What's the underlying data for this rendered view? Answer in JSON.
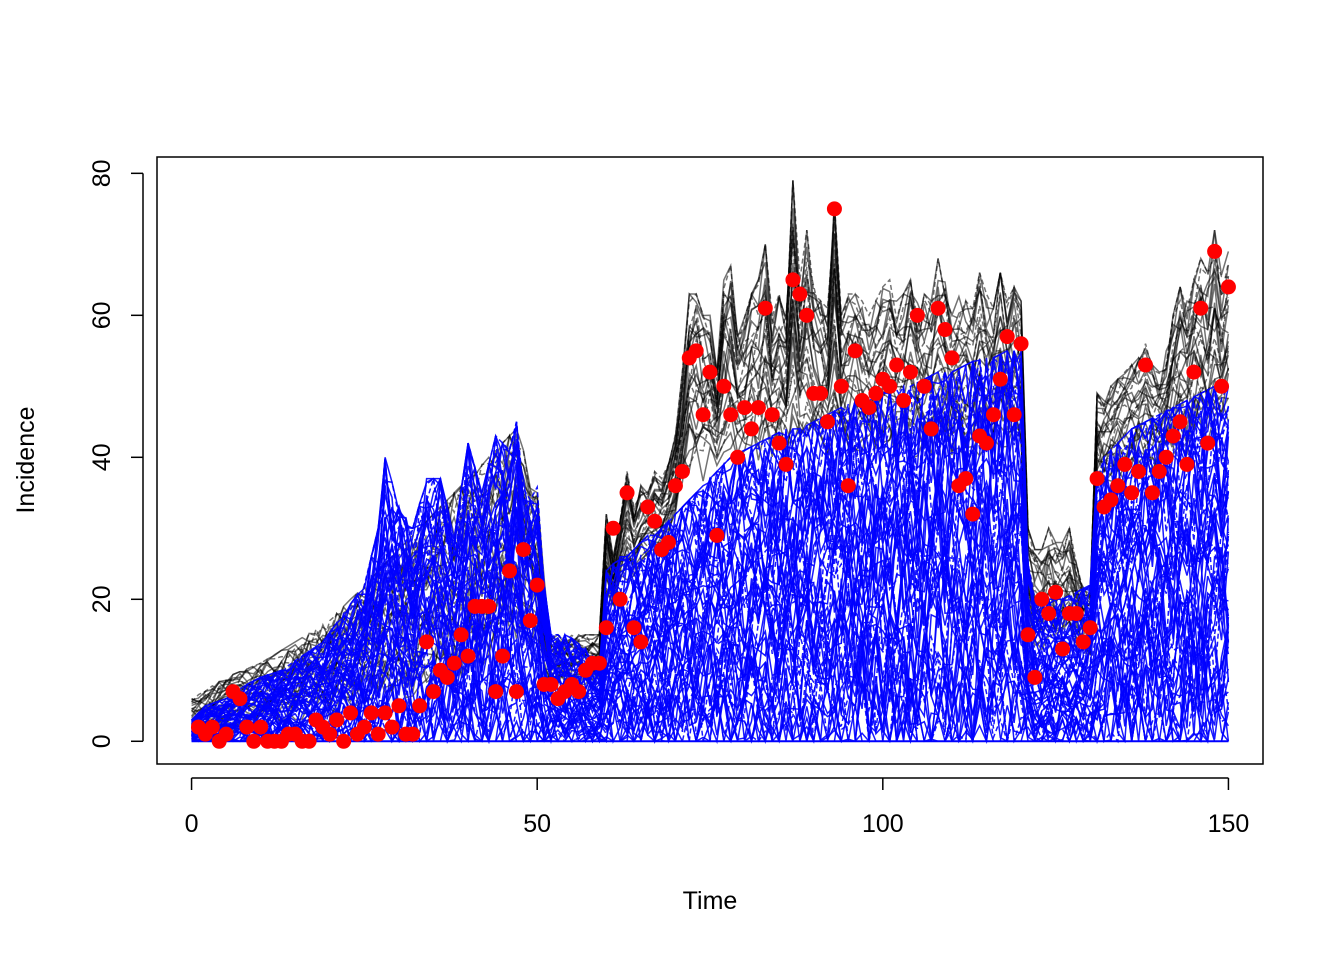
{
  "chart_data": {
    "type": "line",
    "title": "",
    "xlabel": "Time",
    "ylabel": "Incidence",
    "xlim": [
      -5,
      155
    ],
    "ylim": [
      -3.2,
      82.3
    ],
    "xticks": [
      0,
      50,
      100,
      150
    ],
    "yticks": [
      0,
      20,
      40,
      60,
      80
    ],
    "grid": false,
    "legend": "none",
    "colors": {
      "simulations_upper": "#000000",
      "simulations_lower": "#0000FF",
      "observed": "#FF0000"
    },
    "series": [
      {
        "style": "black simulation trajectories",
        "x": [
          0,
          5,
          10,
          20,
          30,
          40,
          47,
          50,
          51,
          52,
          55,
          59,
          60,
          61,
          62,
          63,
          64,
          65,
          66,
          67,
          68,
          69,
          70,
          71,
          72,
          73,
          74,
          75,
          76,
          77,
          78,
          79,
          80,
          81,
          82,
          83,
          84,
          85,
          86,
          87,
          88,
          89,
          90,
          91,
          92,
          93,
          94,
          95,
          96,
          97,
          98,
          99,
          100,
          101,
          102,
          103,
          104,
          105,
          106,
          107,
          108,
          109,
          110,
          111,
          112,
          113,
          114,
          115,
          116,
          117,
          118,
          119,
          120,
          121,
          122,
          123,
          124,
          125,
          126,
          127,
          128,
          129,
          130,
          131,
          132,
          133,
          134,
          135,
          136,
          137,
          138,
          139,
          140,
          141,
          142,
          143,
          144,
          145,
          146,
          147,
          148,
          149,
          150
        ],
        "y_upper": [
          6,
          9,
          11,
          17,
          27,
          37,
          44,
          35,
          23,
          15,
          15,
          15,
          32,
          26,
          31,
          38,
          33,
          36,
          36,
          38,
          37,
          39,
          44,
          52,
          63,
          63,
          60,
          60,
          52,
          66,
          67,
          58,
          60,
          63,
          65,
          70,
          60,
          63,
          60,
          79,
          65,
          72,
          65,
          62,
          62,
          76,
          60,
          63,
          63,
          62,
          60,
          62,
          64,
          65,
          62,
          63,
          65,
          62,
          63,
          62,
          68,
          65,
          60,
          63,
          62,
          62,
          66,
          63,
          61,
          66,
          62,
          64,
          62,
          30,
          27,
          27,
          30,
          28,
          28,
          30,
          25,
          22,
          21,
          49,
          48,
          50,
          51,
          52,
          53,
          54,
          56,
          53,
          52,
          55,
          60,
          64,
          62,
          65,
          68,
          66,
          72,
          66,
          69
        ],
        "y_lower": [
          1,
          2,
          3,
          5,
          8,
          12,
          18,
          16,
          11,
          8,
          8,
          9,
          22,
          20,
          23,
          25,
          24,
          26,
          27,
          28,
          28,
          30,
          32,
          37,
          40,
          40,
          40,
          41,
          40,
          42,
          42,
          41,
          41,
          42,
          42,
          44,
          42,
          42,
          42,
          46,
          43,
          44,
          43,
          42,
          42,
          46,
          42,
          43,
          43,
          42,
          42,
          42,
          43,
          43,
          42,
          43,
          43,
          42,
          43,
          42,
          44,
          43,
          42,
          43,
          42,
          42,
          44,
          43,
          42,
          44,
          42,
          43,
          42,
          18,
          15,
          15,
          16,
          15,
          15,
          16,
          14,
          13,
          12,
          36,
          36,
          37,
          38,
          38,
          39,
          39,
          40,
          39,
          39,
          40,
          42,
          43,
          43,
          44,
          45,
          44,
          47,
          44,
          46
        ]
      },
      {
        "style": "blue simulation trajectories",
        "x": [
          0,
          2,
          5,
          8,
          10,
          13,
          16,
          19,
          22,
          25,
          27,
          28,
          30,
          32,
          34,
          36,
          38,
          40,
          42,
          44,
          46,
          47,
          48,
          49,
          50,
          51,
          52,
          54,
          56,
          58,
          59,
          60,
          61,
          62,
          63,
          64,
          65,
          66,
          67,
          68,
          69,
          70,
          72,
          74,
          76,
          78,
          80,
          82,
          84,
          86,
          88,
          90,
          92,
          94,
          96,
          98,
          100,
          102,
          104,
          106,
          108,
          110,
          112,
          114,
          116,
          118,
          119,
          120,
          121,
          122,
          124,
          126,
          128,
          130,
          131,
          132,
          134,
          136,
          138,
          140,
          142,
          144,
          146,
          148,
          150
        ],
        "y_upper": [
          3,
          5,
          6,
          8,
          9,
          10,
          12,
          14,
          18,
          22,
          30,
          40,
          33,
          30,
          37,
          37,
          29,
          42,
          35,
          43,
          41,
          45,
          37,
          34,
          36,
          22,
          15,
          15,
          14,
          12,
          11,
          24,
          25,
          26,
          26,
          27,
          28,
          29,
          29,
          30,
          31,
          32,
          34,
          36,
          38,
          40,
          41,
          42,
          43,
          44,
          44,
          45,
          46,
          47,
          48,
          48,
          49,
          50,
          50,
          51,
          52,
          52,
          53,
          54,
          54,
          55,
          55,
          55,
          25,
          20,
          20,
          20,
          21,
          22,
          38,
          40,
          42,
          44,
          45,
          46,
          47,
          48,
          49,
          50,
          50
        ],
        "y_lower": [
          0,
          0,
          0,
          0,
          0,
          0,
          0,
          0,
          0,
          0,
          0,
          0,
          0,
          0,
          0,
          0,
          0,
          0,
          0,
          0,
          0,
          0,
          0,
          0,
          0,
          0,
          0,
          0,
          0,
          0,
          0,
          0,
          0,
          0,
          0,
          0,
          0,
          0,
          0,
          0,
          0,
          0,
          0,
          0,
          0,
          0,
          0,
          0,
          0,
          0,
          0,
          0,
          0,
          0,
          0,
          0,
          0,
          0,
          0,
          0,
          0,
          0,
          0,
          0,
          0,
          0,
          0,
          0,
          0,
          0,
          0,
          0,
          0,
          0,
          0,
          0,
          0,
          0,
          0,
          0,
          0,
          0,
          0,
          0,
          0
        ]
      },
      {
        "style": "observed incidence (red points)",
        "x": [
          1,
          2,
          3,
          4,
          5,
          6,
          7,
          8,
          9,
          10,
          11,
          12,
          13,
          14,
          15,
          16,
          17,
          18,
          19,
          20,
          21,
          22,
          23,
          24,
          25,
          26,
          27,
          28,
          29,
          30,
          31,
          32,
          33,
          34,
          35,
          36,
          37,
          38,
          39,
          40,
          41,
          42,
          43,
          44,
          45,
          46,
          47,
          48,
          49,
          50,
          51,
          52,
          53,
          54,
          55,
          56,
          57,
          58,
          59,
          60,
          61,
          62,
          63,
          64,
          65,
          66,
          67,
          68,
          69,
          70,
          71,
          72,
          73,
          74,
          75,
          76,
          77,
          78,
          79,
          80,
          81,
          82,
          83,
          84,
          85,
          86,
          87,
          88,
          89,
          90,
          91,
          92,
          93,
          94,
          95,
          96,
          97,
          98,
          99,
          100,
          101,
          102,
          103,
          104,
          105,
          106,
          107,
          108,
          109,
          110,
          111,
          112,
          113,
          114,
          115,
          116,
          117,
          118,
          119,
          120,
          121,
          122,
          123,
          124,
          125,
          126,
          127,
          128,
          129,
          130,
          131,
          132,
          133,
          134,
          135,
          136,
          137,
          138,
          139,
          140,
          141,
          142,
          143,
          144,
          145,
          146,
          147,
          148,
          149,
          150
        ],
        "y": [
          2,
          1,
          2,
          0,
          1,
          7,
          6,
          2,
          0,
          2,
          0,
          0,
          0,
          1,
          1,
          0,
          0,
          3,
          2,
          1,
          3,
          0,
          4,
          1,
          2,
          4,
          1,
          4,
          2,
          5,
          1,
          1,
          5,
          14,
          7,
          10,
          9,
          11,
          15,
          12,
          19,
          19,
          19,
          7,
          12,
          24,
          7,
          27,
          17,
          22,
          8,
          8,
          6,
          7,
          8,
          7,
          10,
          11,
          11,
          16,
          30,
          20,
          35,
          16,
          14,
          33,
          31,
          27,
          28,
          36,
          38,
          54,
          55,
          46,
          52,
          29,
          50,
          46,
          40,
          47,
          44,
          47,
          61,
          46,
          42,
          39,
          65,
          63,
          60,
          49,
          49,
          45,
          75,
          50,
          36,
          55,
          48,
          47,
          49,
          51,
          50,
          53,
          48,
          52,
          60,
          50,
          44,
          61,
          58,
          54,
          36,
          37,
          32,
          43,
          42,
          46,
          51,
          57,
          46,
          56,
          15,
          9,
          20,
          18,
          21,
          13,
          18,
          18,
          14,
          16,
          37,
          33,
          34,
          36,
          39,
          35,
          38,
          53,
          35,
          38,
          40,
          43,
          45,
          39,
          52,
          61,
          42,
          69,
          50,
          64
        ]
      }
    ]
  }
}
